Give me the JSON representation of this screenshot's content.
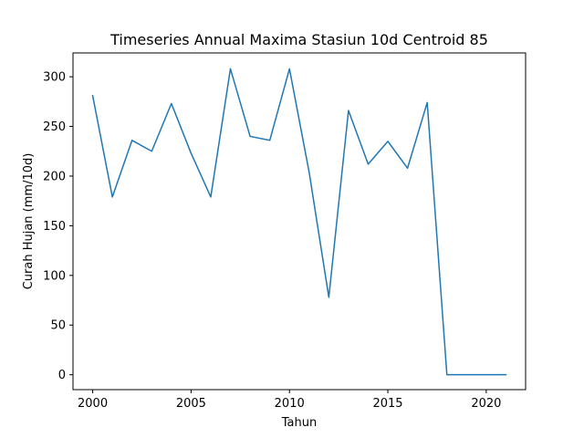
{
  "chart_data": {
    "type": "line",
    "title": "Timeseries Annual Maxima Stasiun 10d Centroid 85",
    "xlabel": "Tahun",
    "ylabel": "Curah Hujan (mm/10d)",
    "xlim": [
      1999,
      2022
    ],
    "ylim": [
      -15,
      324
    ],
    "x_ticks": [
      2000,
      2005,
      2010,
      2015,
      2020
    ],
    "y_ticks": [
      0,
      50,
      100,
      150,
      200,
      250,
      300
    ],
    "grid": false,
    "legend": "none",
    "colors": {
      "line": "#1f77b4",
      "axes": "#000000",
      "background": "#ffffff"
    },
    "series": [
      {
        "x": [
          2000,
          2001,
          2002,
          2003,
          2004,
          2005,
          2006,
          2007,
          2008,
          2009,
          2010,
          2011,
          2012,
          2013,
          2014,
          2015,
          2016,
          2017,
          2018,
          2019,
          2020,
          2021
        ],
        "values": [
          281,
          179,
          236,
          225,
          273,
          223,
          179,
          308,
          240,
          236,
          308,
          204,
          78,
          266,
          212,
          235,
          208,
          274,
          0,
          0,
          0,
          0
        ]
      }
    ]
  }
}
